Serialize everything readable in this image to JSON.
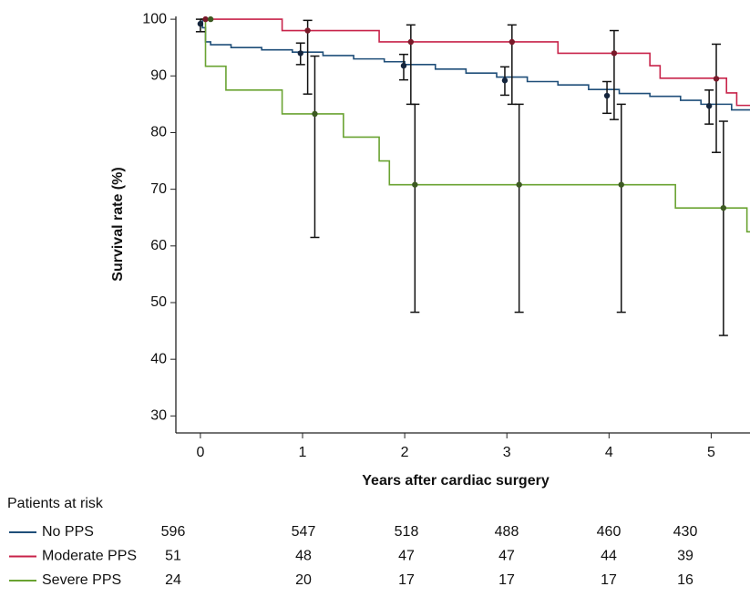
{
  "chart_data": {
    "type": "step",
    "x_label": "Years after cardiac surgery",
    "y_label": "Survival rate (%)",
    "xlim": [
      -0.24,
      5.38
    ],
    "ylim": [
      27,
      100.5
    ],
    "xticks": [
      0,
      1,
      2,
      3,
      4,
      5
    ],
    "yticks": [
      30,
      40,
      50,
      60,
      70,
      80,
      90,
      100
    ],
    "grid": false,
    "risk_table_title": "Patients at risk",
    "series": [
      {
        "name": "No PPS",
        "color": "#1f4e79",
        "point_color": "#14253d",
        "x": [
          0,
          0.02,
          0.05,
          0.1,
          0.3,
          0.6,
          0.9,
          1.2,
          1.5,
          1.8,
          2.0,
          2.3,
          2.6,
          2.9,
          3.2,
          3.5,
          3.8,
          4.1,
          4.4,
          4.7,
          4.9,
          5.2
        ],
        "values": [
          100,
          98.5,
          96,
          95.5,
          95,
          94.6,
          94.2,
          93.6,
          93,
          92.5,
          92,
          91.2,
          90.5,
          89.8,
          89,
          88.4,
          87.6,
          86.9,
          86.4,
          85.7,
          85,
          84
        ],
        "points": {
          "x": [
            0,
            0.98,
            1.99,
            2.98,
            3.98,
            4.98
          ],
          "values": [
            99.2,
            94,
            91.8,
            89.2,
            86.5,
            84.7
          ],
          "lower": [
            97.8,
            92,
            89.3,
            86.6,
            83.4,
            81.5
          ],
          "upper": [
            100,
            95.8,
            93.8,
            91.6,
            89,
            87.5
          ]
        },
        "at_risk": [
          596,
          547,
          518,
          488,
          460,
          430
        ]
      },
      {
        "name": "Moderate PPS",
        "color": "#c8234a",
        "point_color": "#7a1a2a",
        "x": [
          0,
          0.8,
          1.75,
          3.5,
          4.4,
          4.5,
          5.15,
          5.25
        ],
        "values": [
          100,
          98,
          96,
          94,
          91.8,
          89.6,
          87,
          84.8
        ],
        "points": {
          "x": [
            0.05,
            1.05,
            2.06,
            3.05,
            4.05,
            5.05
          ],
          "values": [
            100,
            98,
            96,
            96,
            94,
            89.5
          ],
          "lower": [
            null,
            86.8,
            85,
            85,
            82.3,
            76.5
          ],
          "upper": [
            null,
            99.8,
            99,
            99,
            98,
            95.6
          ]
        },
        "at_risk": [
          51,
          48,
          47,
          47,
          44,
          39
        ]
      },
      {
        "name": "Severe PPS",
        "color": "#6aa332",
        "point_color": "#3d5a22",
        "x": [
          0,
          0.05,
          0.25,
          0.8,
          1.4,
          1.75,
          1.85,
          4.65,
          5.35
        ],
        "values": [
          100,
          91.7,
          87.5,
          83.3,
          79.2,
          75,
          70.8,
          66.7,
          62.5
        ],
        "points": {
          "x": [
            0.1,
            1.12,
            2.1,
            3.12,
            4.12,
            5.12
          ],
          "values": [
            100,
            83.3,
            70.8,
            70.8,
            70.8,
            66.7
          ],
          "lower": [
            null,
            61.5,
            48.3,
            48.3,
            48.3,
            44.2
          ],
          "upper": [
            null,
            93.5,
            85,
            85,
            85,
            82
          ]
        },
        "at_risk": [
          24,
          20,
          17,
          17,
          17,
          16
        ]
      }
    ]
  }
}
